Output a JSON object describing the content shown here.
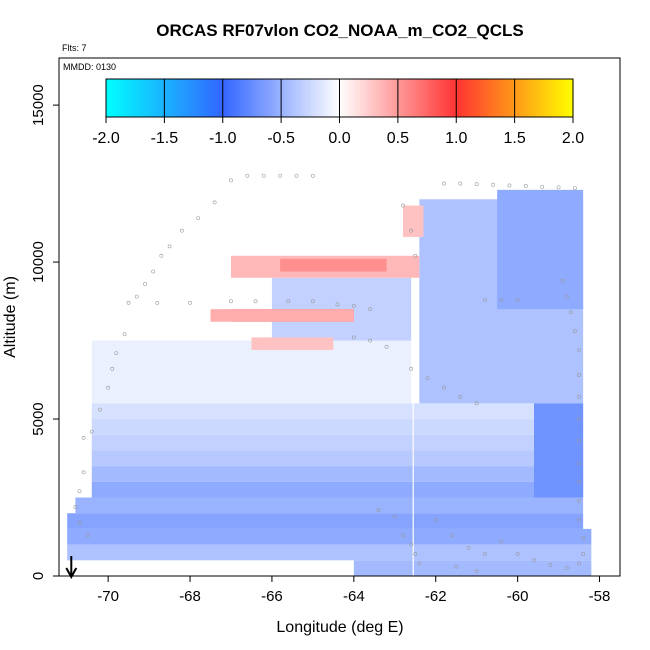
{
  "chart_data": {
    "type": "heatmap",
    "title": "ORCAS RF07vlon CO2_NOAA_m_CO2_QCLS",
    "subtitle": "Flts: 7",
    "annotation": "MMDD: 0130",
    "xlabel": "Longitude (deg E)",
    "ylabel": "Altitude (m)",
    "xlim": [
      -71.2,
      -57.5
    ],
    "ylim": [
      0,
      16500
    ],
    "xticks": [
      -70,
      -68,
      -66,
      -64,
      -62,
      -60,
      -58
    ],
    "xtick_labels": [
      "-70",
      "-68",
      "-66",
      "-64",
      "-62",
      "-60",
      "-58"
    ],
    "yticks": [
      0,
      5000,
      10000,
      15000
    ],
    "ytick_labels": [
      "0",
      "5000",
      "10000",
      "15000"
    ],
    "colorbar": {
      "range": [
        -2.0,
        2.0
      ],
      "ticks": [
        -2.0,
        -1.5,
        -1.0,
        -0.5,
        0.0,
        0.5,
        1.0,
        1.5,
        2.0
      ],
      "tick_labels": [
        "-2.0",
        "-1.5",
        "-1.0",
        "-0.5",
        "0.0",
        "0.5",
        "1.0",
        "1.5",
        "2.0"
      ],
      "colors": [
        "#00ffff",
        "#3366ff",
        "#ffffff",
        "#ff3333",
        "#ffff00"
      ]
    },
    "cells": [
      {
        "x0": -70.4,
        "x1": -58.4,
        "y0": 5000,
        "y1": 5500,
        "v": -0.2
      },
      {
        "x0": -70.4,
        "x1": -58.4,
        "y0": 4500,
        "y1": 5000,
        "v": -0.25
      },
      {
        "x0": -70.4,
        "x1": -58.4,
        "y0": 4000,
        "y1": 4500,
        "v": -0.3
      },
      {
        "x0": -70.4,
        "x1": -58.4,
        "y0": 3500,
        "y1": 4000,
        "v": -0.35
      },
      {
        "x0": -70.4,
        "x1": -58.4,
        "y0": 3000,
        "y1": 3500,
        "v": -0.45
      },
      {
        "x0": -70.4,
        "x1": -58.4,
        "y0": 2500,
        "y1": 3000,
        "v": -0.55
      },
      {
        "x0": -70.8,
        "x1": -58.4,
        "y0": 2000,
        "y1": 2500,
        "v": -0.5
      },
      {
        "x0": -71.0,
        "x1": -58.4,
        "y0": 1500,
        "y1": 2000,
        "v": -0.6
      },
      {
        "x0": -71.0,
        "x1": -58.2,
        "y0": 1000,
        "y1": 1500,
        "v": -0.55
      },
      {
        "x0": -71.0,
        "x1": -58.2,
        "y0": 500,
        "y1": 1000,
        "v": -0.4
      },
      {
        "x0": -64.0,
        "x1": -58.2,
        "y0": 0,
        "y1": 500,
        "v": -0.45
      },
      {
        "x0": -70.4,
        "x1": -62.6,
        "y0": 5500,
        "y1": 7500,
        "v": -0.1
      },
      {
        "x0": -62.4,
        "x1": -58.4,
        "y0": 5500,
        "y1": 12000,
        "v": -0.4
      },
      {
        "x0": -66.0,
        "x1": -62.6,
        "y0": 7500,
        "y1": 9500,
        "v": -0.3
      },
      {
        "x0": -67.0,
        "x1": -64.0,
        "y0": 8100,
        "y1": 8500,
        "v": 0.75
      },
      {
        "x0": -67.5,
        "x1": -64.0,
        "y0": 8100,
        "y1": 8500,
        "v": 0.4
      },
      {
        "x0": -67.0,
        "x1": -62.4,
        "y0": 9500,
        "y1": 10200,
        "v": 0.35
      },
      {
        "x0": -65.8,
        "x1": -63.2,
        "y0": 9700,
        "y1": 10100,
        "v": 0.55
      },
      {
        "x0": -66.5,
        "x1": -64.5,
        "y0": 7200,
        "y1": 7600,
        "v": 0.3
      },
      {
        "x0": -60.5,
        "x1": -58.4,
        "y0": 8500,
        "y1": 12300,
        "v": -0.55
      },
      {
        "x0": -62.8,
        "x1": -62.3,
        "y0": 10800,
        "y1": 11800,
        "v": 0.3
      },
      {
        "x0": -59.6,
        "x1": -58.4,
        "y0": 2500,
        "y1": 5500,
        "v": -0.7
      }
    ],
    "flight_track": [
      [
        -70.6,
        4400
      ],
      [
        -70.4,
        4600
      ],
      [
        -70.2,
        5300
      ],
      [
        -70.0,
        6000
      ],
      [
        -69.9,
        6600
      ],
      [
        -69.8,
        7100
      ],
      [
        -69.6,
        7700
      ],
      [
        -69.5,
        8700
      ],
      [
        -69.3,
        8900
      ],
      [
        -69.1,
        9300
      ],
      [
        -68.9,
        9700
      ],
      [
        -68.7,
        10200
      ],
      [
        -68.5,
        10500
      ],
      [
        -68.2,
        11000
      ],
      [
        -67.8,
        11400
      ],
      [
        -67.4,
        11900
      ],
      [
        -67.0,
        12600
      ],
      [
        -66.6,
        12750
      ],
      [
        -66.2,
        12750
      ],
      [
        -65.8,
        12750
      ],
      [
        -65.4,
        12750
      ],
      [
        -65.0,
        12750
      ],
      [
        -62.8,
        11800
      ],
      [
        -62.6,
        11000
      ],
      [
        -62.5,
        10200
      ],
      [
        -61.8,
        12500
      ],
      [
        -61.4,
        12500
      ],
      [
        -61.0,
        12480
      ],
      [
        -60.6,
        12460
      ],
      [
        -60.2,
        12440
      ],
      [
        -59.8,
        12420
      ],
      [
        -59.4,
        12400
      ],
      [
        -59.0,
        12380
      ],
      [
        -58.6,
        12360
      ],
      [
        -68.8,
        8700
      ],
      [
        -68.0,
        8700
      ],
      [
        -67.0,
        8750
      ],
      [
        -66.4,
        8750
      ],
      [
        -65.6,
        8750
      ],
      [
        -65.0,
        8750
      ],
      [
        -64.4,
        8650
      ],
      [
        -64.0,
        8600
      ],
      [
        -63.6,
        8500
      ],
      [
        -60.8,
        8800
      ],
      [
        -60.4,
        8800
      ],
      [
        -60.0,
        8800
      ],
      [
        -64.0,
        7600
      ],
      [
        -63.6,
        7500
      ],
      [
        -63.2,
        7300
      ],
      [
        -62.6,
        6600
      ],
      [
        -62.2,
        6300
      ],
      [
        -61.8,
        6000
      ],
      [
        -61.4,
        5700
      ],
      [
        -61.0,
        5500
      ],
      [
        -58.9,
        9400
      ],
      [
        -58.8,
        8900
      ],
      [
        -58.7,
        8400
      ],
      [
        -58.6,
        7800
      ],
      [
        -58.5,
        7200
      ],
      [
        -58.5,
        6400
      ],
      [
        -58.5,
        5700
      ],
      [
        -58.5,
        5000
      ],
      [
        -58.5,
        4300
      ],
      [
        -58.5,
        3600
      ],
      [
        -58.5,
        3000
      ],
      [
        -58.5,
        2400
      ],
      [
        -58.5,
        1800
      ],
      [
        -58.4,
        1200
      ],
      [
        -58.4,
        700
      ],
      [
        -58.5,
        400
      ],
      [
        -70.6,
        3300
      ],
      [
        -70.7,
        2700
      ],
      [
        -70.8,
        2200
      ],
      [
        -70.7,
        1700
      ],
      [
        -70.5,
        1300
      ],
      [
        -62.0,
        1800
      ],
      [
        -61.6,
        1300
      ],
      [
        -61.2,
        900
      ],
      [
        -60.8,
        700
      ],
      [
        -60.4,
        1100
      ],
      [
        -60.0,
        700
      ],
      [
        -59.6,
        500
      ],
      [
        -59.2,
        350
      ],
      [
        -58.8,
        250
      ],
      [
        -63.4,
        2100
      ],
      [
        -63.0,
        1900
      ],
      [
        -62.8,
        1300
      ],
      [
        -62.6,
        1000
      ],
      [
        -62.5,
        700
      ],
      [
        -62.4,
        400
      ],
      [
        -61.5,
        300
      ],
      [
        -61.0,
        150
      ]
    ],
    "marker_longitude": -70.9,
    "vertical_line_longitude": -62.55
  }
}
